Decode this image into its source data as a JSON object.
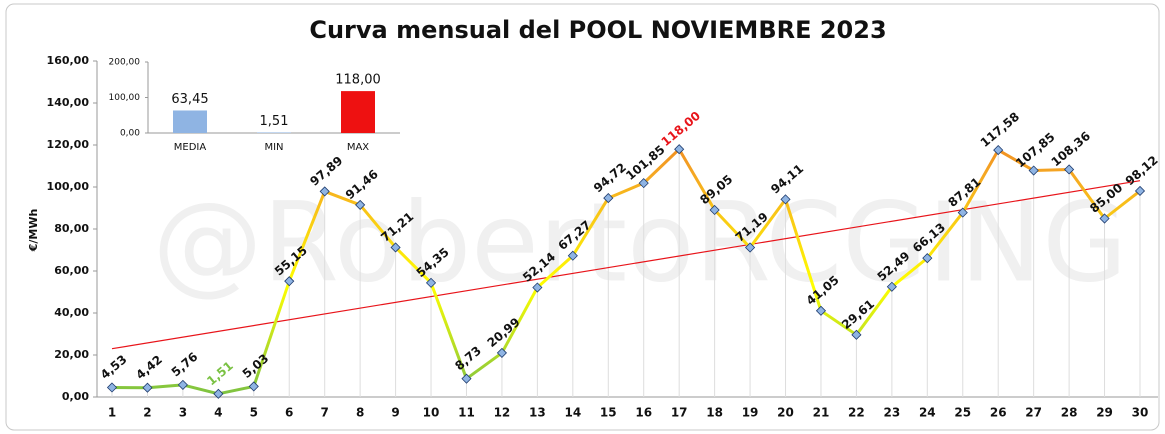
{
  "chart_data": [
    {
      "type": "line",
      "title": "Curva mensual del POOL NOVIEMBRE 2023",
      "y_label": "€/MWh",
      "watermark": "@RobertoRCGING",
      "categories": [
        "1",
        "2",
        "3",
        "4",
        "5",
        "6",
        "7",
        "8",
        "9",
        "10",
        "11",
        "12",
        "13",
        "14",
        "15",
        "16",
        "17",
        "18",
        "19",
        "20",
        "21",
        "22",
        "23",
        "24",
        "25",
        "26",
        "27",
        "28",
        "29",
        "30"
      ],
      "values": [
        4.53,
        4.42,
        5.76,
        1.51,
        5.03,
        55.15,
        97.89,
        91.46,
        71.21,
        54.35,
        8.73,
        20.99,
        52.14,
        67.27,
        94.72,
        101.85,
        118.0,
        89.05,
        71.19,
        94.11,
        41.05,
        29.61,
        52.49,
        66.13,
        87.81,
        117.58,
        107.85,
        108.36,
        85.0,
        98.12
      ],
      "value_labels": [
        "4,53",
        "4,42",
        "5,76",
        "1,51",
        "5,03",
        "55,15",
        "97,89",
        "91,46",
        "71,21",
        "54,35",
        "8,73",
        "20,99",
        "52,14",
        "67,27",
        "94,72",
        "101,85",
        "118,00",
        "89,05",
        "71,19",
        "94,11",
        "41,05",
        "29,61",
        "52,49",
        "66,13",
        "87,81",
        "117,58",
        "107,85",
        "108,36",
        "85,00",
        "98,12"
      ],
      "color_scale": [
        "#7ac143",
        "#ffff00",
        "#f5a623",
        "#e0401a"
      ],
      "marker_color": "#8fb4e3",
      "min_label_color": "#7ac143",
      "max_label_color": "#e8141a",
      "trendline": {
        "color": "#e8141a",
        "values": [
          23,
          103
        ]
      },
      "drop_lines": true,
      "ylim": [
        0,
        160
      ],
      "yticks": [
        {
          "value": 0,
          "label": "0,00"
        },
        {
          "value": 20,
          "label": "20,00"
        },
        {
          "value": 40,
          "label": "40,00"
        },
        {
          "value": 60,
          "label": "60,00"
        },
        {
          "value": 80,
          "label": "80,00"
        },
        {
          "value": 100,
          "label": "100,00"
        },
        {
          "value": 120,
          "label": "120,00"
        },
        {
          "value": 140,
          "label": "140,00"
        },
        {
          "value": 160,
          "label": "160,00"
        }
      ]
    },
    {
      "type": "bar",
      "categories": [
        "MEDIA",
        "MIN",
        "MAX"
      ],
      "values": [
        63.45,
        1.51,
        118.0
      ],
      "value_labels": [
        "63,45",
        "1,51",
        "118,00"
      ],
      "colors": [
        "#8fb4e3",
        "#8fb4e3",
        "#ee1111"
      ],
      "ylim": [
        0,
        200
      ],
      "yticks": [
        {
          "value": 0,
          "label": "0,00"
        },
        {
          "value": 100,
          "label": "100,00"
        },
        {
          "value": 200,
          "label": "200,00"
        }
      ]
    }
  ]
}
